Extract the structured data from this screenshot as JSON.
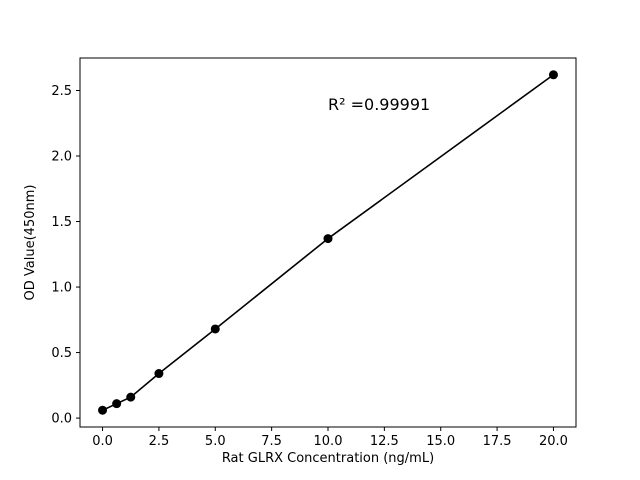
{
  "chart_data": {
    "type": "scatter",
    "title": "",
    "xlabel": "Rat GLRX Concentration (ng/mL)",
    "ylabel": "OD Value(450nm)",
    "annotation": "R² =0.99991",
    "annotation_xy": [
      10,
      2.35
    ],
    "x": [
      0,
      0.625,
      1.25,
      2.5,
      5,
      10,
      20
    ],
    "y": [
      0.06,
      0.11,
      0.16,
      0.34,
      0.68,
      1.37,
      2.62
    ],
    "xticks": [
      0.0,
      2.5,
      5.0,
      7.5,
      10.0,
      12.5,
      15.0,
      17.5,
      20.0
    ],
    "yticks": [
      0.0,
      0.5,
      1.0,
      1.5,
      2.0,
      2.5
    ],
    "xlim": [
      -1,
      21
    ],
    "ylim": [
      -0.068,
      2.748
    ],
    "has_fit_line": true,
    "grid": false,
    "legend": "none",
    "marker_color": "#000000",
    "line_color": "#000000",
    "background": "#ffffff"
  }
}
